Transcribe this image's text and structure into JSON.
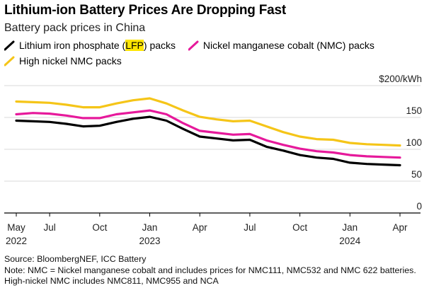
{
  "title": "Lithium-ion Battery Prices Are Dropping Fast",
  "subtitle": "Battery pack prices in China",
  "legend": {
    "lfp_prefix": "Lithium iron phosphate (",
    "lfp_highlight": "LFP",
    "lfp_suffix": ") packs",
    "nmc": "Nickel manganese cobalt (NMC) packs",
    "high_nickel": "High nickel NMC packs"
  },
  "footer": {
    "source": "Source: BloombergNEF, ICC Battery",
    "note1": "Note: NMC = Nickel manganese cobalt and includes prices for NMC111, NMC532 and NMC 622 batteries.",
    "note2": "High-nickel NMC includes NMC811, NMC955 and NCA"
  },
  "colors": {
    "lfp": "#000000",
    "nmc": "#e6199b",
    "high_nickel": "#f5c518",
    "grid": "#d9d9d9",
    "axis": "#000000"
  },
  "chart_data": {
    "type": "line",
    "title": "Lithium-ion Battery Prices Are Dropping Fast",
    "subtitle": "Battery pack prices in China",
    "y_unit_label": "$200/kWh",
    "ylim": [
      0,
      200
    ],
    "y_ticks": [
      0,
      50,
      100,
      150,
      200
    ],
    "y_tick_labels": [
      "0",
      "50",
      "100",
      "150",
      "$200/kWh"
    ],
    "x_range": [
      0,
      23
    ],
    "x_ticks": [
      {
        "month_index": 0,
        "label": "May",
        "sub": "2022"
      },
      {
        "month_index": 2,
        "label": "Jul",
        "sub": ""
      },
      {
        "month_index": 5,
        "label": "Oct",
        "sub": ""
      },
      {
        "month_index": 8,
        "label": "Jan",
        "sub": "2023"
      },
      {
        "month_index": 11,
        "label": "Apr",
        "sub": ""
      },
      {
        "month_index": 14,
        "label": "Jul",
        "sub": ""
      },
      {
        "month_index": 17,
        "label": "Oct",
        "sub": ""
      },
      {
        "month_index": 20,
        "label": "Jan",
        "sub": "2024"
      },
      {
        "month_index": 23,
        "label": "Apr",
        "sub": ""
      }
    ],
    "x": [
      0,
      1,
      2,
      3,
      4,
      5,
      6,
      7,
      8,
      9,
      10,
      11,
      12,
      13,
      14,
      15,
      16,
      17,
      18,
      19,
      20,
      21,
      22,
      23
    ],
    "series": [
      {
        "name": "High nickel NMC packs",
        "key": "high_nickel",
        "values": [
          175,
          174,
          173,
          170,
          166,
          166,
          172,
          177,
          180,
          172,
          161,
          151,
          147,
          144,
          145,
          136,
          127,
          120,
          116,
          115,
          110,
          108,
          107,
          106
        ]
      },
      {
        "name": "Nickel manganese cobalt (NMC) packs",
        "key": "nmc",
        "values": [
          155,
          157,
          156,
          153,
          149,
          149,
          155,
          158,
          161,
          155,
          141,
          129,
          126,
          123,
          124,
          114,
          107,
          101,
          97,
          95,
          91,
          89,
          88,
          87
        ]
      },
      {
        "name": "Lithium iron phosphate (LFP) packs",
        "key": "lfp",
        "values": [
          145,
          144,
          143,
          140,
          136,
          137,
          143,
          148,
          151,
          145,
          132,
          120,
          117,
          114,
          115,
          104,
          98,
          91,
          87,
          85,
          79,
          77,
          76,
          75
        ]
      }
    ]
  }
}
